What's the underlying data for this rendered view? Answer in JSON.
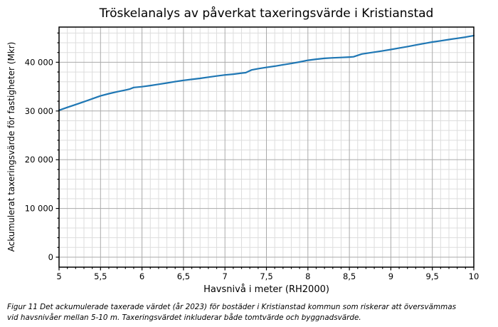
{
  "caption_lines": [
    "Figur 11 Det ackumulerade taxerade värdet (år 2023) för bostäder i Kristianstad kommun som riskerar att översvämmas",
    "vid havsnivåer mellan 5-10 m. Taxeringsvärdet inkluderar både tomtvärde och byggnadsvärde."
  ],
  "chart_data": {
    "type": "line",
    "title": "Tröskelanalys av påverkat taxeringsvärde i Kristianstad",
    "xlabel": "Havsnivå i meter (RH2000)",
    "ylabel": "Ackumulerat taxeringsvärde för fastigheter (Mkr)",
    "xlim": [
      5,
      10
    ],
    "ylim": [
      -2050,
      47220
    ],
    "x_major_ticks": [
      5,
      5.5,
      6,
      6.5,
      7,
      7.5,
      8,
      8.5,
      9,
      9.5,
      10
    ],
    "x_tick_labels": [
      "5",
      "5,5",
      "6",
      "6,5",
      "7",
      "7,5",
      "8",
      "8,5",
      "9",
      "9,5",
      "10"
    ],
    "x_minor_step": 0.1,
    "y_major_ticks": [
      0,
      10000,
      20000,
      30000,
      40000
    ],
    "y_tick_labels": [
      "0",
      "10 000",
      "20 000",
      "30 000",
      "40 000"
    ],
    "y_minor_step": 2000,
    "grid": "major+minor",
    "legend": "none",
    "line_color": "#1f77b4",
    "grid_major_color": "#aaaaaa",
    "grid_minor_color": "#dddddd",
    "axis_color": "#000000",
    "series": [
      {
        "name": "Ackumulerat taxeringsvärde för fastigheter",
        "points": [
          [
            5.0,
            30150
          ],
          [
            5.1,
            30750
          ],
          [
            5.2,
            31320
          ],
          [
            5.3,
            31900
          ],
          [
            5.4,
            32500
          ],
          [
            5.5,
            33100
          ],
          [
            5.6,
            33550
          ],
          [
            5.7,
            33950
          ],
          [
            5.8,
            34300
          ],
          [
            5.85,
            34480
          ],
          [
            5.9,
            34820
          ],
          [
            6.0,
            34980
          ],
          [
            6.1,
            35220
          ],
          [
            6.2,
            35480
          ],
          [
            6.3,
            35740
          ],
          [
            6.4,
            36020
          ],
          [
            6.5,
            36290
          ],
          [
            6.6,
            36490
          ],
          [
            6.7,
            36690
          ],
          [
            6.8,
            36940
          ],
          [
            6.9,
            37180
          ],
          [
            7.0,
            37400
          ],
          [
            7.1,
            37560
          ],
          [
            7.2,
            37780
          ],
          [
            7.25,
            37860
          ],
          [
            7.32,
            38420
          ],
          [
            7.4,
            38680
          ],
          [
            7.5,
            38950
          ],
          [
            7.6,
            39200
          ],
          [
            7.7,
            39480
          ],
          [
            7.8,
            39750
          ],
          [
            7.9,
            40060
          ],
          [
            8.0,
            40400
          ],
          [
            8.1,
            40620
          ],
          [
            8.2,
            40800
          ],
          [
            8.3,
            40900
          ],
          [
            8.4,
            40980
          ],
          [
            8.5,
            41060
          ],
          [
            8.55,
            41120
          ],
          [
            8.65,
            41700
          ],
          [
            8.7,
            41820
          ],
          [
            8.8,
            42080
          ],
          [
            8.9,
            42340
          ],
          [
            9.0,
            42620
          ],
          [
            9.1,
            42920
          ],
          [
            9.2,
            43220
          ],
          [
            9.3,
            43530
          ],
          [
            9.4,
            43840
          ],
          [
            9.5,
            44150
          ],
          [
            9.6,
            44400
          ],
          [
            9.7,
            44660
          ],
          [
            9.8,
            44910
          ],
          [
            9.9,
            45160
          ],
          [
            10.0,
            45480
          ]
        ]
      }
    ]
  }
}
